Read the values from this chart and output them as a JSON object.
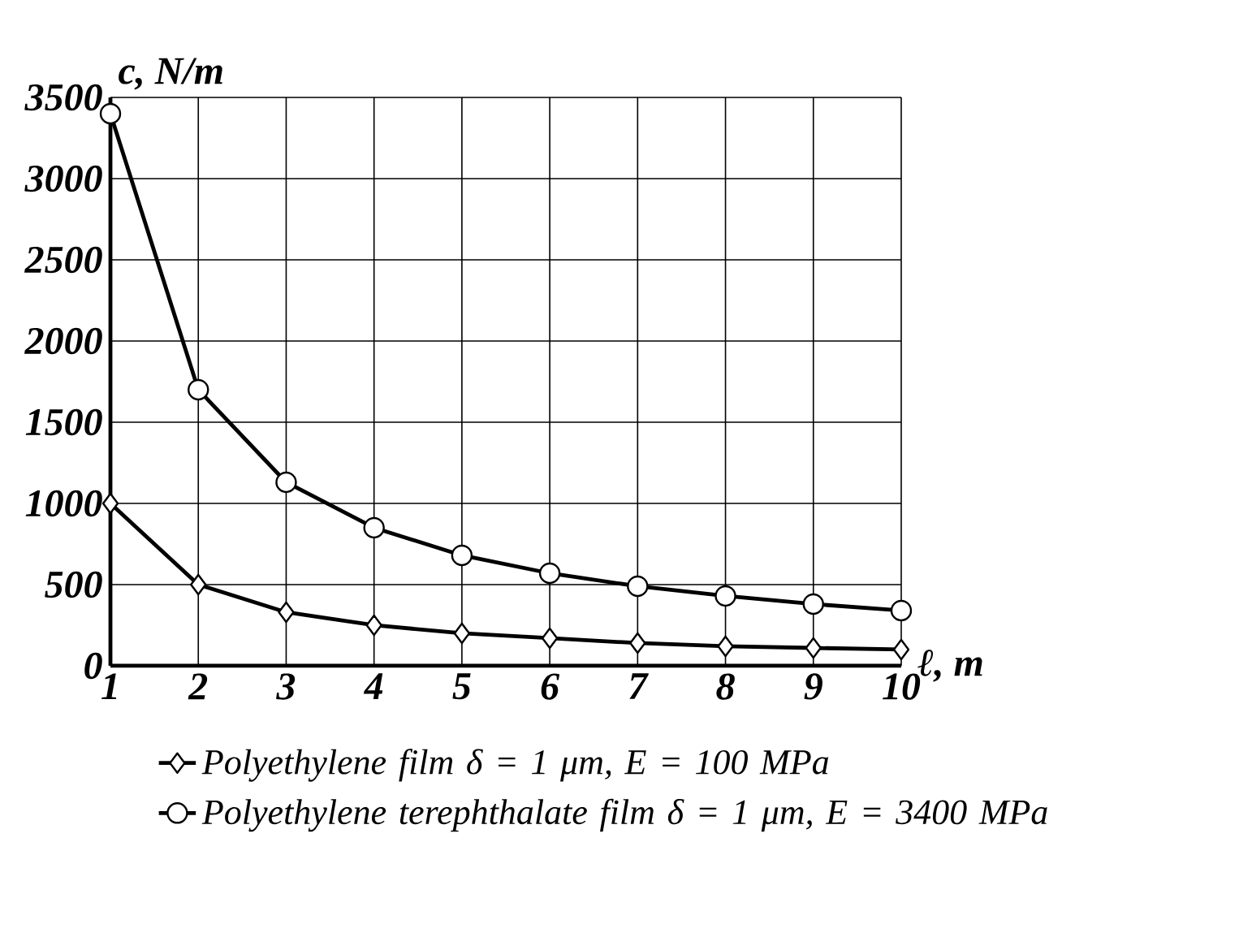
{
  "chart_data": {
    "type": "line",
    "xlabel": "ℓ, m",
    "ylabel": "c, N/m",
    "x": [
      1,
      2,
      3,
      4,
      5,
      6,
      7,
      8,
      9,
      10
    ],
    "series": [
      {
        "name": "Polyethylene film δ = 1 μm, E = 100 MPa",
        "color": "#000000",
        "marker": "diamond",
        "values": [
          1000,
          500,
          330,
          250,
          200,
          170,
          140,
          120,
          110,
          100
        ]
      },
      {
        "name": "Polyethylene terephthalate film δ = 1 μm, E = 3400 MPa",
        "color": "#000000",
        "marker": "circle",
        "values": [
          3400,
          1700,
          1130,
          850,
          680,
          570,
          490,
          430,
          380,
          340
        ]
      }
    ],
    "xlim": [
      1,
      10
    ],
    "ylim": [
      0,
      3500
    ],
    "xticks": [
      1,
      2,
      3,
      4,
      5,
      6,
      7,
      8,
      9,
      10
    ],
    "yticks": [
      0,
      500,
      1000,
      1500,
      2000,
      2500,
      3000,
      3500
    ],
    "grid": true,
    "legend": "bottom",
    "line_style": "solid"
  }
}
